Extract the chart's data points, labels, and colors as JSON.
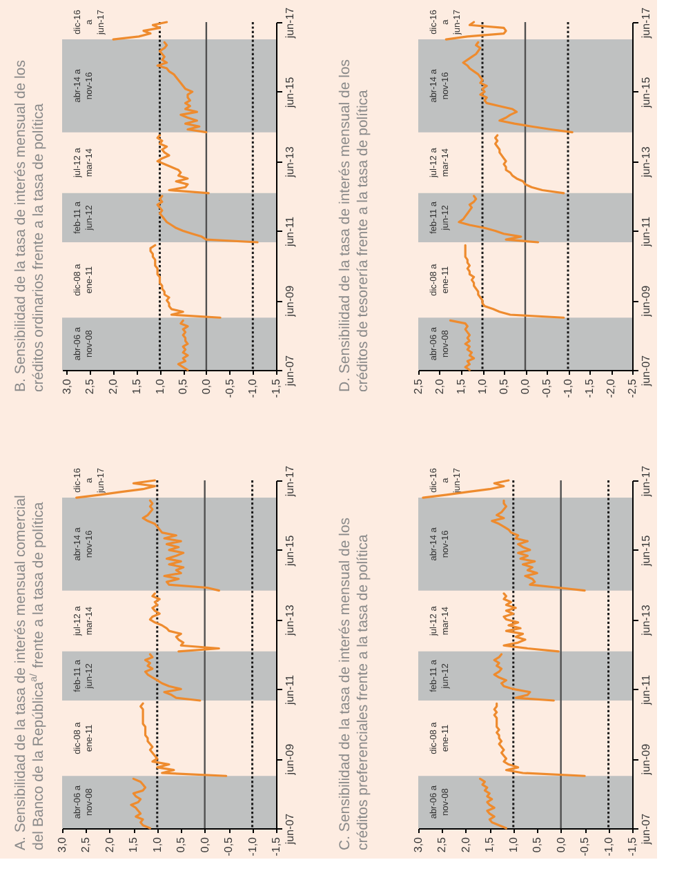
{
  "chart_data": [
    {
      "type": "line",
      "orientation": "horizontal",
      "title": "B. Sensibilidad de la tasa de interés mensual de los\ncréditos ordinarios frente a la tasa de política",
      "ylim": [
        "2007-06",
        "2017-06"
      ],
      "yticks": [
        {
          "value": "2007-06",
          "label": "jun-07"
        },
        {
          "value": "2009-06",
          "label": "jun-09"
        },
        {
          "value": "2011-06",
          "label": "jun-11"
        },
        {
          "value": "2013-06",
          "label": "jun-13"
        },
        {
          "value": "2015-06",
          "label": "jun-15"
        },
        {
          "value": "2017-06",
          "label": "jun-17"
        }
      ],
      "xlim": [
        3.1,
        -1.5
      ],
      "xticks": [
        {
          "value": 3.0,
          "label": "3,0"
        },
        {
          "value": 2.5,
          "label": "2,5"
        },
        {
          "value": 2.0,
          "label": "2,0"
        },
        {
          "value": 1.5,
          "label": "1,5"
        },
        {
          "value": 1.0,
          "label": "1,0"
        },
        {
          "value": 0.5,
          "label": "0,5"
        },
        {
          "value": 0.0,
          "label": "0,0"
        },
        {
          "value": -0.5,
          "label": "-0,5"
        },
        {
          "value": -1.0,
          "label": "-1,0"
        },
        {
          "value": -1.5,
          "label": "-1,5"
        }
      ],
      "bands": [
        {
          "axis": "y",
          "from": "2007-06",
          "to": "2008-12",
          "label": "abr-06 a\nnov-08",
          "color": "#bfc1c1"
        },
        {
          "axis": "y",
          "from": "2011-02",
          "to": "2012-07",
          "label": "feb-11 a\njun-12",
          "color": "#bfc1c1"
        },
        {
          "axis": "y",
          "from": "2014-04",
          "to": "2016-12",
          "label": "abr-14 a\nnov-16",
          "color": "#bfc1c1"
        }
      ],
      "annotations": [
        "dic-08 a\nene-11",
        "jul-12 a\nmar-14",
        "dic-16\na\njun-17"
      ],
      "ref_lines": [
        {
          "axis": "x",
          "value": 0.0,
          "color": "#505050",
          "line_style": "solid"
        },
        {
          "axis": "x",
          "value": 1.0,
          "color": "#1a1a1a",
          "line_style": "dotted"
        },
        {
          "axis": "x",
          "value": -1.0,
          "color": "#1a1a1a",
          "line_style": "dotted"
        }
      ],
      "series": [
        {
          "color": "#ee8b2e",
          "x": [
            "2007-06",
            "2007-07",
            "2007-08",
            "2007-09",
            "2007-10",
            "2007-11",
            "2007-12",
            "2008-01",
            "2008-02",
            "2008-03",
            "2008-04",
            "2008-05",
            "2008-06",
            "2008-07",
            "2008-08",
            "2008-09",
            "2008-10",
            "2008-11"
          ],
          "values": [
            0.4,
            0.5,
            0.6,
            0.45,
            0.5,
            0.4,
            0.5,
            0.45,
            0.5,
            0.4,
            0.45,
            0.45,
            0.5,
            0.45,
            0.5,
            0.4,
            0.55,
            0.5
          ]
        },
        {
          "color": "#ee8b2e",
          "x": [
            "2008-12",
            "2009-01",
            "2009-02",
            "2009-03",
            "2009-04",
            "2009-05",
            "2009-06",
            "2009-07",
            "2009-08",
            "2009-09",
            "2009-10",
            "2009-11",
            "2009-12",
            "2010-01",
            "2010-02",
            "2010-03",
            "2010-04",
            "2010-05",
            "2010-06",
            "2010-07",
            "2010-08",
            "2010-09",
            "2010-10",
            "2010-11",
            "2010-12",
            "2011-01"
          ],
          "values": [
            -0.3,
            0.75,
            0.5,
            0.75,
            0.8,
            0.8,
            0.85,
            0.8,
            0.9,
            0.9,
            0.95,
            0.95,
            1.0,
            1.0,
            1.0,
            1.05,
            1.05,
            1.05,
            1.1,
            1.1,
            1.1,
            1.15,
            1.15,
            1.2,
            1.2,
            1.1
          ]
        },
        {
          "color": "#ee8b2e",
          "x": [
            "2011-02",
            "2011-03",
            "2011-04",
            "2011-05",
            "2011-06",
            "2011-07",
            "2011-08",
            "2011-09",
            "2011-10",
            "2011-11",
            "2011-12",
            "2012-01",
            "2012-02",
            "2012-03",
            "2012-04",
            "2012-05",
            "2012-06"
          ],
          "values": [
            -1.1,
            0.0,
            0.1,
            0.3,
            0.5,
            0.65,
            0.75,
            0.85,
            0.9,
            0.95,
            1.0,
            0.95,
            1.0,
            1.05,
            0.95,
            1.0,
            0.95
          ]
        },
        {
          "color": "#ee8b2e",
          "x": [
            "2012-07",
            "2012-08",
            "2012-09",
            "2012-10",
            "2012-11",
            "2012-12",
            "2013-01",
            "2013-02",
            "2013-03",
            "2013-04",
            "2013-05",
            "2013-06",
            "2013-07",
            "2013-08",
            "2013-09",
            "2013-10",
            "2013-11",
            "2013-12",
            "2014-01",
            "2014-02",
            "2014-03"
          ],
          "values": [
            -0.05,
            0.8,
            0.45,
            0.4,
            0.65,
            0.4,
            0.6,
            0.55,
            0.6,
            0.75,
            0.9,
            1.05,
            0.95,
            0.8,
            0.9,
            0.95,
            0.85,
            1.0,
            0.95,
            1.05,
            1.0
          ]
        },
        {
          "color": "#ee8b2e",
          "x": [
            "2014-04",
            "2014-05",
            "2014-06",
            "2014-07",
            "2014-08",
            "2014-09",
            "2014-10",
            "2014-11",
            "2014-12",
            "2015-01",
            "2015-02",
            "2015-03",
            "2015-04",
            "2015-05",
            "2015-06",
            "2015-07",
            "2015-08",
            "2015-09",
            "2015-10",
            "2015-11",
            "2015-12",
            "2016-01",
            "2016-02",
            "2016-03",
            "2016-04",
            "2016-05",
            "2016-06",
            "2016-07",
            "2016-08",
            "2016-09",
            "2016-10",
            "2016-11"
          ],
          "values": [
            0.0,
            0.4,
            0.15,
            0.45,
            0.2,
            0.4,
            0.55,
            0.2,
            0.45,
            0.35,
            0.45,
            0.35,
            0.4,
            0.4,
            0.3,
            0.45,
            0.5,
            0.55,
            0.6,
            0.65,
            0.7,
            0.8,
            0.85,
            1.05,
            0.85,
            0.95,
            0.9,
            0.95,
            1.0,
            0.9,
            0.85,
            0.9
          ]
        },
        {
          "color": "#ee8b2e",
          "x": [
            "2016-12",
            "2017-01",
            "2017-02",
            "2017-03",
            "2017-04",
            "2017-05",
            "2017-06"
          ],
          "values": [
            2.0,
            1.45,
            1.2,
            1.35,
            1.0,
            1.15,
            0.85
          ]
        }
      ]
    },
    {
      "type": "line",
      "orientation": "horizontal",
      "title": "D. Sensibilidad de la tasa de interés mensual de los\ncréditos de tesorería frente a la tasa de política",
      "ylim": [
        "2007-06",
        "2017-06"
      ],
      "yticks": [
        {
          "value": "2007-06",
          "label": "jun-07"
        },
        {
          "value": "2009-06",
          "label": "jun-09"
        },
        {
          "value": "2011-06",
          "label": "jun-11"
        },
        {
          "value": "2013-06",
          "label": "jun-13"
        },
        {
          "value": "2015-06",
          "label": "jun-15"
        },
        {
          "value": "2017-06",
          "label": "jun-17"
        }
      ],
      "xlim": [
        2.5,
        -2.5
      ],
      "xticks": [
        {
          "value": 2.5,
          "label": "2,5"
        },
        {
          "value": 2.0,
          "label": "2,0"
        },
        {
          "value": 1.5,
          "label": "1,5"
        },
        {
          "value": 1.0,
          "label": "1,0"
        },
        {
          "value": 0.5,
          "label": "0,5"
        },
        {
          "value": 0.0,
          "label": "0,0"
        },
        {
          "value": -0.5,
          "label": "-0,5"
        },
        {
          "value": -1.0,
          "label": "-1,0"
        },
        {
          "value": -1.5,
          "label": "-1,5"
        },
        {
          "value": -2.0,
          "label": "-2,0"
        },
        {
          "value": -2.5,
          "label": "-2,5"
        }
      ],
      "bands": [
        {
          "axis": "y",
          "from": "2007-06",
          "to": "2008-12",
          "label": "abr-06 a\nnov-08",
          "color": "#bfc1c1"
        },
        {
          "axis": "y",
          "from": "2011-02",
          "to": "2012-07",
          "label": "feb-11 a\njun-12",
          "color": "#bfc1c1"
        },
        {
          "axis": "y",
          "from": "2014-04",
          "to": "2016-12",
          "label": "abr-14 a\nnov-16",
          "color": "#bfc1c1"
        }
      ],
      "annotations": [
        "dic-08 a\nene-11",
        "jul-12 a\nmar-14",
        "dic-16\na\njun-17"
      ],
      "ref_lines": [
        {
          "axis": "x",
          "value": 0.0,
          "color": "#505050",
          "line_style": "solid"
        },
        {
          "axis": "x",
          "value": 1.0,
          "color": "#1a1a1a",
          "line_style": "dotted"
        },
        {
          "axis": "x",
          "value": -1.0,
          "color": "#1a1a1a",
          "line_style": "dotted"
        }
      ],
      "series": [
        {
          "color": "#ee8b2e",
          "x": [
            "2007-06",
            "2007-07",
            "2007-08",
            "2007-09",
            "2007-10",
            "2007-11",
            "2007-12",
            "2008-01",
            "2008-02",
            "2008-03",
            "2008-04",
            "2008-05",
            "2008-06",
            "2008-07",
            "2008-08",
            "2008-09",
            "2008-10",
            "2008-11"
          ],
          "values": [
            1.3,
            1.4,
            1.3,
            1.35,
            1.2,
            1.3,
            1.25,
            1.35,
            1.3,
            1.4,
            1.3,
            1.35,
            1.3,
            1.35,
            1.4,
            1.35,
            1.4,
            1.75
          ]
        },
        {
          "color": "#ee8b2e",
          "x": [
            "2008-12",
            "2009-01",
            "2009-02",
            "2009-03",
            "2009-04",
            "2009-05",
            "2009-06",
            "2009-07",
            "2009-08",
            "2009-09",
            "2009-10",
            "2009-11",
            "2009-12",
            "2010-01",
            "2010-02",
            "2010-03",
            "2010-04",
            "2010-05",
            "2010-06",
            "2010-07",
            "2010-08",
            "2010-09",
            "2010-10",
            "2010-11",
            "2010-12",
            "2011-01"
          ],
          "values": [
            -0.9,
            0.35,
            0.6,
            0.75,
            0.95,
            1.0,
            1.0,
            1.05,
            1.1,
            1.1,
            1.15,
            1.2,
            1.2,
            1.25,
            1.2,
            1.3,
            1.3,
            1.35,
            1.3,
            1.35,
            1.35,
            1.4,
            1.4,
            1.4,
            1.4,
            1.4
          ]
        },
        {
          "color": "#ee8b2e",
          "x": [
            "2011-02",
            "2011-03",
            "2011-04",
            "2011-05",
            "2011-06",
            "2011-07",
            "2011-08",
            "2011-09",
            "2011-10",
            "2011-11",
            "2011-12",
            "2012-01",
            "2012-02",
            "2012-03",
            "2012-04",
            "2012-05",
            "2012-06"
          ],
          "values": [
            -0.3,
            0.45,
            0.1,
            0.5,
            0.7,
            0.95,
            1.3,
            1.55,
            1.45,
            1.4,
            1.35,
            1.3,
            1.25,
            1.3,
            1.2,
            1.15,
            1.2
          ]
        },
        {
          "color": "#ee8b2e",
          "x": [
            "2012-07",
            "2012-08",
            "2012-09",
            "2012-10",
            "2012-11",
            "2012-12",
            "2013-01",
            "2013-02",
            "2013-03",
            "2013-04",
            "2013-05",
            "2013-06",
            "2013-07",
            "2013-08",
            "2013-09",
            "2013-10",
            "2013-11",
            "2013-12",
            "2014-01",
            "2014-02",
            "2014-03"
          ],
          "values": [
            -0.9,
            -0.4,
            -0.15,
            0.0,
            0.05,
            0.2,
            0.3,
            0.35,
            0.45,
            0.45,
            0.5,
            0.45,
            0.5,
            0.55,
            0.6,
            0.6,
            0.65,
            0.7,
            0.65,
            0.7,
            0.65
          ]
        },
        {
          "color": "#ee8b2e",
          "x": [
            "2014-04",
            "2014-05",
            "2014-06",
            "2014-07",
            "2014-08",
            "2014-09",
            "2014-10",
            "2014-11",
            "2014-12",
            "2015-01",
            "2015-02",
            "2015-03",
            "2015-04",
            "2015-05",
            "2015-06",
            "2015-07",
            "2015-08",
            "2015-09",
            "2015-10",
            "2015-11",
            "2015-12",
            "2016-01",
            "2016-02",
            "2016-03",
            "2016-04",
            "2016-05",
            "2016-06",
            "2016-07",
            "2016-08",
            "2016-09",
            "2016-10",
            "2016-11"
          ],
          "values": [
            -1.1,
            -0.6,
            -0.15,
            0.25,
            0.6,
            0.45,
            0.35,
            0.2,
            0.3,
            0.6,
            0.9,
            0.95,
            0.9,
            1.05,
            0.95,
            1.0,
            0.9,
            1.05,
            1.0,
            1.05,
            1.1,
            1.2,
            1.3,
            1.35,
            1.45,
            1.35,
            1.25,
            1.15,
            1.1,
            1.05,
            1.15,
            1.1
          ]
        },
        {
          "color": "#ee8b2e",
          "x": [
            "2016-12",
            "2017-01",
            "2017-02",
            "2017-03",
            "2017-04",
            "2017-05",
            "2017-06"
          ],
          "values": [
            1.85,
            1.35,
            0.5,
            0.45,
            0.5,
            1.3,
            1.2
          ]
        }
      ]
    },
    {
      "type": "line",
      "orientation": "horizontal",
      "title": "A. Sensibilidad de la tasa de interés mensual comercial\ndel Banco de la República$^{a/}$ frente a la tasa de política",
      "ylim": [
        "2007-06",
        "2017-06"
      ],
      "yticks": [
        {
          "value": "2007-06",
          "label": "jun-07"
        },
        {
          "value": "2009-06",
          "label": "jun-09"
        },
        {
          "value": "2011-06",
          "label": "jun-11"
        },
        {
          "value": "2013-06",
          "label": "jun-13"
        },
        {
          "value": "2015-06",
          "label": "jun-15"
        },
        {
          "value": "2017-06",
          "label": "jun-17"
        }
      ],
      "xlim": [
        3.0,
        -1.5
      ],
      "xticks": [
        {
          "value": 3.0,
          "label": "3,0"
        },
        {
          "value": 2.5,
          "label": "2,5"
        },
        {
          "value": 2.0,
          "label": "2,0"
        },
        {
          "value": 1.5,
          "label": "1,5"
        },
        {
          "value": 1.0,
          "label": "1,0"
        },
        {
          "value": 0.5,
          "label": "0,5"
        },
        {
          "value": 0.0,
          "label": "0,0"
        },
        {
          "value": -0.5,
          "label": "-0,5"
        },
        {
          "value": -1.0,
          "label": "-1,0"
        },
        {
          "value": -1.5,
          "label": "-1,5"
        }
      ],
      "bands": [
        {
          "axis": "y",
          "from": "2007-06",
          "to": "2008-12",
          "label": "abr-06 a\nnov-08",
          "color": "#bfc1c1"
        },
        {
          "axis": "y",
          "from": "2011-02",
          "to": "2012-07",
          "label": "feb-11 a\njun-12",
          "color": "#bfc1c1"
        },
        {
          "axis": "y",
          "from": "2014-04",
          "to": "2016-12",
          "label": "abr-14 a\nnov-16",
          "color": "#bfc1c1"
        }
      ],
      "annotations": [
        "dic-08 a\nene-11",
        "jul-12 a\nmar-14",
        "dic-16\na\njun-17"
      ],
      "ref_lines": [
        {
          "axis": "x",
          "value": 0.0,
          "color": "#505050",
          "line_style": "solid"
        },
        {
          "axis": "x",
          "value": 1.0,
          "color": "#1a1a1a",
          "line_style": "dotted"
        },
        {
          "axis": "x",
          "value": -1.0,
          "color": "#1a1a1a",
          "line_style": "dotted"
        }
      ],
      "series": [
        {
          "color": "#ee8b2e",
          "x": [
            "2007-06",
            "2007-07",
            "2007-08",
            "2007-09",
            "2007-10",
            "2007-11",
            "2007-12",
            "2008-01",
            "2008-02",
            "2008-03",
            "2008-04",
            "2008-05",
            "2008-06",
            "2008-07",
            "2008-08",
            "2008-09",
            "2008-10",
            "2008-11"
          ],
          "values": [
            1.15,
            1.3,
            1.35,
            1.3,
            1.45,
            1.35,
            1.4,
            1.45,
            1.55,
            1.4,
            1.35,
            1.45,
            1.5,
            1.3,
            1.25,
            1.3,
            1.35,
            1.5
          ]
        },
        {
          "color": "#ee8b2e",
          "x": [
            "2008-12",
            "2009-01",
            "2009-02",
            "2009-03",
            "2009-04",
            "2009-05",
            "2009-06",
            "2009-07",
            "2009-08",
            "2009-09",
            "2009-10",
            "2009-11",
            "2009-12",
            "2010-01",
            "2010-02",
            "2010-03",
            "2010-04",
            "2010-05",
            "2010-06",
            "2010-07",
            "2010-08",
            "2010-09",
            "2010-10",
            "2010-11",
            "2010-12",
            "2011-01"
          ],
          "values": [
            -0.45,
            0.9,
            0.65,
            1.0,
            0.75,
            1.1,
            1.0,
            1.05,
            1.1,
            1.15,
            1.1,
            1.15,
            1.2,
            1.2,
            1.25,
            1.25,
            1.25,
            1.25,
            1.3,
            1.3,
            1.3,
            1.3,
            1.3,
            1.3,
            1.35,
            1.3
          ]
        },
        {
          "color": "#ee8b2e",
          "x": [
            "2011-02",
            "2011-03",
            "2011-04",
            "2011-05",
            "2011-06",
            "2011-07",
            "2011-08",
            "2011-09",
            "2011-10",
            "2011-11",
            "2011-12",
            "2012-01",
            "2012-02",
            "2012-03",
            "2012-04",
            "2012-05",
            "2012-06"
          ],
          "values": [
            0.1,
            0.6,
            0.7,
            0.85,
            0.5,
            0.75,
            0.9,
            1.0,
            1.1,
            1.2,
            1.25,
            1.1,
            1.2,
            1.15,
            1.25,
            1.1,
            1.15
          ]
        },
        {
          "color": "#ee8b2e",
          "x": [
            "2012-07",
            "2012-08",
            "2012-09",
            "2012-10",
            "2012-11",
            "2012-12",
            "2013-01",
            "2013-02",
            "2013-03",
            "2013-04",
            "2013-05",
            "2013-06",
            "2013-07",
            "2013-08",
            "2013-09",
            "2013-10",
            "2013-11",
            "2013-12",
            "2014-01",
            "2014-02",
            "2014-03"
          ],
          "values": [
            0.55,
            -0.3,
            0.5,
            0.45,
            0.55,
            0.6,
            0.5,
            0.75,
            0.8,
            0.9,
            1.05,
            1.15,
            1.1,
            0.95,
            1.05,
            1.1,
            1.0,
            1.05,
            0.95,
            1.1,
            1.05
          ]
        },
        {
          "color": "#ee8b2e",
          "x": [
            "2014-04",
            "2014-05",
            "2014-06",
            "2014-07",
            "2014-08",
            "2014-09",
            "2014-10",
            "2014-11",
            "2014-12",
            "2015-01",
            "2015-02",
            "2015-03",
            "2015-04",
            "2015-05",
            "2015-06",
            "2015-07",
            "2015-08",
            "2015-09",
            "2015-10",
            "2015-11",
            "2015-12",
            "2016-01",
            "2016-02",
            "2016-03",
            "2016-04",
            "2016-05",
            "2016-06",
            "2016-07",
            "2016-08",
            "2016-09",
            "2016-10",
            "2016-11"
          ],
          "values": [
            -0.3,
            -0.05,
            0.75,
            0.8,
            0.55,
            0.85,
            0.5,
            0.6,
            0.45,
            0.75,
            0.5,
            0.8,
            0.6,
            0.45,
            0.75,
            0.55,
            0.8,
            0.5,
            0.85,
            0.6,
            0.9,
            0.95,
            1.0,
            1.05,
            1.2,
            1.3,
            1.2,
            1.15,
            1.1,
            1.15,
            1.1,
            1.15
          ]
        },
        {
          "color": "#ee8b2e",
          "x": [
            "2016-12",
            "2017-01",
            "2017-02",
            "2017-03",
            "2017-04",
            "2017-05",
            "2017-06"
          ],
          "values": [
            2.7,
            2.2,
            1.75,
            1.3,
            1.05,
            1.5,
            1.05
          ]
        }
      ]
    },
    {
      "type": "line",
      "orientation": "horizontal",
      "title": "C. Sensibilidad de la tasa de interés mensual de los\ncréditos preferenciales frente a la tasa de política",
      "ylim": [
        "2007-06",
        "2017-06"
      ],
      "yticks": [
        {
          "value": "2007-06",
          "label": "jun-07"
        },
        {
          "value": "2009-06",
          "label": "jun-09"
        },
        {
          "value": "2011-06",
          "label": "jun-11"
        },
        {
          "value": "2013-06",
          "label": "jun-13"
        },
        {
          "value": "2015-06",
          "label": "jun-15"
        },
        {
          "value": "2017-06",
          "label": "jun-17"
        }
      ],
      "xlim": [
        3.0,
        -1.5
      ],
      "xticks": [
        {
          "value": 3.0,
          "label": "3,0"
        },
        {
          "value": 2.5,
          "label": "2,5"
        },
        {
          "value": 2.0,
          "label": "2,0"
        },
        {
          "value": 1.5,
          "label": "1,5"
        },
        {
          "value": 1.0,
          "label": "1,0"
        },
        {
          "value": 0.5,
          "label": "0,5"
        },
        {
          "value": 0.0,
          "label": "0,0"
        },
        {
          "value": -0.5,
          "label": "-0,5"
        },
        {
          "value": -1.0,
          "label": "-1,0"
        },
        {
          "value": -1.5,
          "label": "-1,5"
        }
      ],
      "bands": [
        {
          "axis": "y",
          "from": "2007-06",
          "to": "2008-12",
          "label": "abr-06 a\nnov-08",
          "color": "#bfc1c1"
        },
        {
          "axis": "y",
          "from": "2011-02",
          "to": "2012-07",
          "label": "feb-11 a\njun-12",
          "color": "#bfc1c1"
        },
        {
          "axis": "y",
          "from": "2014-04",
          "to": "2016-12",
          "label": "abr-14 a\nnov-16",
          "color": "#bfc1c1"
        }
      ],
      "annotations": [
        "dic-08 a\nene-11",
        "jul-12 a\nmar-14",
        "dic-16\na\njun-17"
      ],
      "ref_lines": [
        {
          "axis": "x",
          "value": 0.0,
          "color": "#505050",
          "line_style": "solid"
        },
        {
          "axis": "x",
          "value": 1.0,
          "color": "#1a1a1a",
          "line_style": "dotted"
        },
        {
          "axis": "x",
          "value": -1.0,
          "color": "#1a1a1a",
          "line_style": "dotted"
        }
      ],
      "series": [
        {
          "color": "#ee8b2e",
          "x": [
            "2007-06",
            "2007-07",
            "2007-08",
            "2007-09",
            "2007-10",
            "2007-11",
            "2007-12",
            "2008-01",
            "2008-02",
            "2008-03",
            "2008-04",
            "2008-05",
            "2008-06",
            "2008-07",
            "2008-08",
            "2008-09",
            "2008-10",
            "2008-11"
          ],
          "values": [
            1.15,
            1.3,
            1.45,
            1.5,
            1.4,
            1.5,
            1.55,
            1.4,
            1.5,
            1.55,
            1.45,
            1.55,
            1.5,
            1.6,
            1.55,
            1.65,
            1.6,
            1.7
          ]
        },
        {
          "color": "#ee8b2e",
          "x": [
            "2008-12",
            "2009-01",
            "2009-02",
            "2009-03",
            "2009-04",
            "2009-05",
            "2009-06",
            "2009-07",
            "2009-08",
            "2009-09",
            "2009-10",
            "2009-11",
            "2009-12",
            "2010-01",
            "2010-02",
            "2010-03",
            "2010-04",
            "2010-05",
            "2010-06",
            "2010-07",
            "2010-08",
            "2010-09",
            "2010-10",
            "2010-11",
            "2010-12",
            "2011-01"
          ],
          "values": [
            -0.5,
            0.8,
            1.15,
            0.9,
            1.1,
            1.2,
            1.15,
            1.2,
            1.25,
            1.2,
            1.25,
            1.3,
            1.25,
            1.3,
            1.3,
            1.35,
            1.3,
            1.35,
            1.35,
            1.35,
            1.35,
            1.4,
            1.35,
            1.4,
            1.35,
            1.35
          ]
        },
        {
          "color": "#ee8b2e",
          "x": [
            "2011-02",
            "2011-03",
            "2011-04",
            "2011-05",
            "2011-06",
            "2011-07",
            "2011-08",
            "2011-09",
            "2011-10",
            "2011-11",
            "2011-12",
            "2012-01",
            "2012-02",
            "2012-03",
            "2012-04",
            "2012-05",
            "2012-06"
          ],
          "values": [
            0.15,
            0.95,
            0.7,
            0.65,
            1.0,
            1.2,
            1.25,
            1.15,
            1.3,
            1.4,
            1.3,
            1.25,
            1.35,
            1.3,
            1.4,
            1.3,
            1.25
          ]
        },
        {
          "color": "#ee8b2e",
          "x": [
            "2012-07",
            "2012-08",
            "2012-09",
            "2012-10",
            "2012-11",
            "2012-12",
            "2013-01",
            "2013-02",
            "2013-03",
            "2013-04",
            "2013-05",
            "2013-06",
            "2013-07",
            "2013-08",
            "2013-09",
            "2013-10",
            "2013-11",
            "2013-12",
            "2014-01",
            "2014-02",
            "2014-03"
          ],
          "values": [
            0.05,
            0.7,
            1.2,
            0.9,
            0.75,
            0.95,
            0.8,
            1.15,
            0.85,
            1.1,
            0.9,
            1.15,
            1.2,
            1.0,
            1.15,
            0.95,
            1.15,
            1.05,
            1.2,
            1.15,
            1.2
          ]
        },
        {
          "color": "#ee8b2e",
          "x": [
            "2014-04",
            "2014-05",
            "2014-06",
            "2014-07",
            "2014-08",
            "2014-09",
            "2014-10",
            "2014-11",
            "2014-12",
            "2015-01",
            "2015-02",
            "2015-03",
            "2015-04",
            "2015-05",
            "2015-06",
            "2015-07",
            "2015-08",
            "2015-09",
            "2015-10",
            "2015-11",
            "2015-12",
            "2016-01",
            "2016-02",
            "2016-03",
            "2016-04",
            "2016-05",
            "2016-06",
            "2016-07",
            "2016-08",
            "2016-09",
            "2016-10",
            "2016-11"
          ],
          "values": [
            -0.5,
            0.05,
            0.65,
            0.55,
            0.6,
            0.75,
            0.5,
            0.7,
            0.6,
            0.8,
            0.55,
            0.85,
            0.7,
            0.9,
            0.65,
            0.8,
            0.9,
            0.7,
            0.95,
            0.9,
            1.05,
            1.1,
            1.2,
            1.3,
            1.45,
            1.2,
            1.35,
            1.25,
            1.2,
            1.15,
            1.2,
            1.2
          ]
        },
        {
          "color": "#ee8b2e",
          "x": [
            "2016-12",
            "2017-01",
            "2017-02",
            "2017-03",
            "2017-04",
            "2017-05",
            "2017-06"
          ],
          "values": [
            2.9,
            2.4,
            1.95,
            1.5,
            1.2,
            1.4,
            1.1
          ]
        }
      ]
    }
  ]
}
